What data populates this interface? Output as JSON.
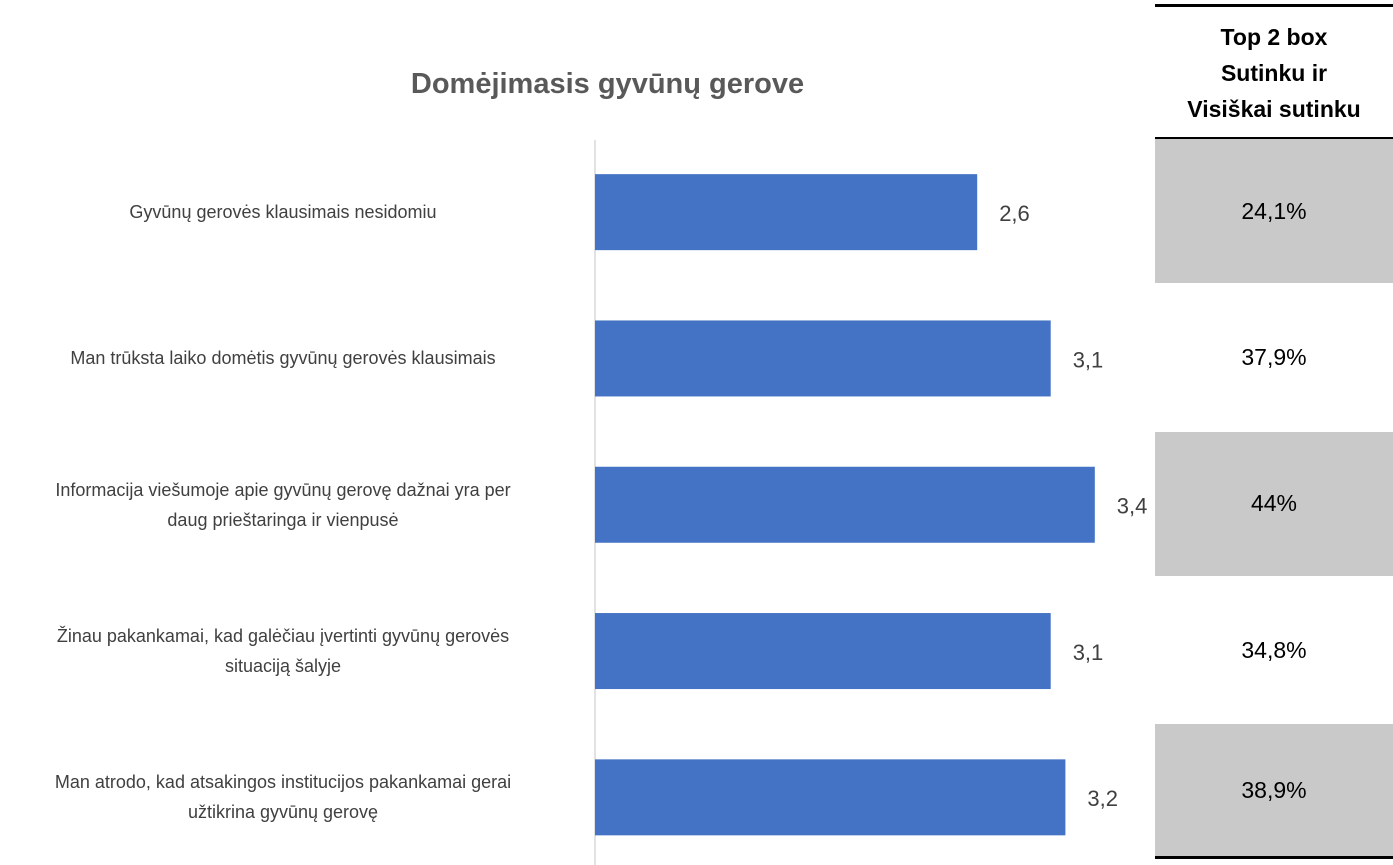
{
  "chart_data": {
    "type": "bar",
    "orientation": "horizontal",
    "title": "Domėjimasis gyvūnų gerove",
    "categories": [
      "Gyvūnų gerovės klausimais nesidomiu",
      "Man trūksta laiko domėtis gyvūnų gerovės klausimais",
      "Informacija viešumoje apie gyvūnų gerovę dažnai yra per\ndaug prieštaringa ir vienpusė",
      "Žinau pakankamai, kad galėčiau įvertinti gyvūnų gerovės\nsituaciją šalyje",
      "Man atrodo, kad atsakingos institucijos pakankamai gerai\nužtikrina gyvūnų gerovę"
    ],
    "values": [
      2.6,
      3.1,
      3.4,
      3.1,
      3.2
    ],
    "value_labels": [
      "2,6",
      "3,1",
      "3,4",
      "3,1",
      "3,2"
    ],
    "color": "#4472c4",
    "xlim": [
      0,
      5
    ]
  },
  "table": {
    "header": [
      "Top 2 box",
      "Sutinku ir",
      "Visiškai sutinku"
    ],
    "cells": [
      "24,1%",
      "37,9%",
      "44%",
      "34,8%",
      "38,9%"
    ]
  }
}
